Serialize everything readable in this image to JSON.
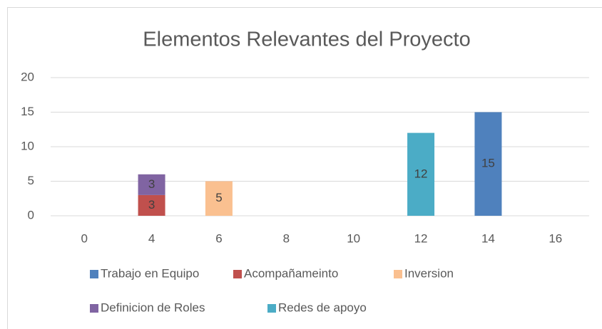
{
  "chart_data": {
    "type": "stacked_bar",
    "title": "Elementos Relevantes del Proyecto",
    "categories": [
      0,
      4,
      6,
      8,
      10,
      12,
      14,
      16
    ],
    "series": [
      {
        "name": "Trabajo en Equipo",
        "color": "#4f81bd",
        "values": [
          null,
          null,
          null,
          null,
          null,
          null,
          15,
          null
        ]
      },
      {
        "name": "Acompañameinto",
        "color": "#c0504d",
        "values": [
          null,
          3,
          null,
          null,
          null,
          null,
          null,
          null
        ]
      },
      {
        "name": "Inversion",
        "color": "#fac090",
        "values": [
          null,
          null,
          5,
          null,
          null,
          null,
          null,
          null
        ]
      },
      {
        "name": "Definicion de Roles",
        "color": "#8064a2",
        "values": [
          null,
          3,
          null,
          null,
          null,
          null,
          null,
          null
        ]
      },
      {
        "name": "Redes de apoyo",
        "color": "#4bacc6",
        "values": [
          null,
          null,
          null,
          null,
          null,
          12,
          null,
          null
        ]
      }
    ],
    "ylim": [
      0,
      20
    ],
    "yticks": [
      0,
      5,
      10,
      15,
      20
    ],
    "grid": true,
    "legend": "bottom"
  }
}
